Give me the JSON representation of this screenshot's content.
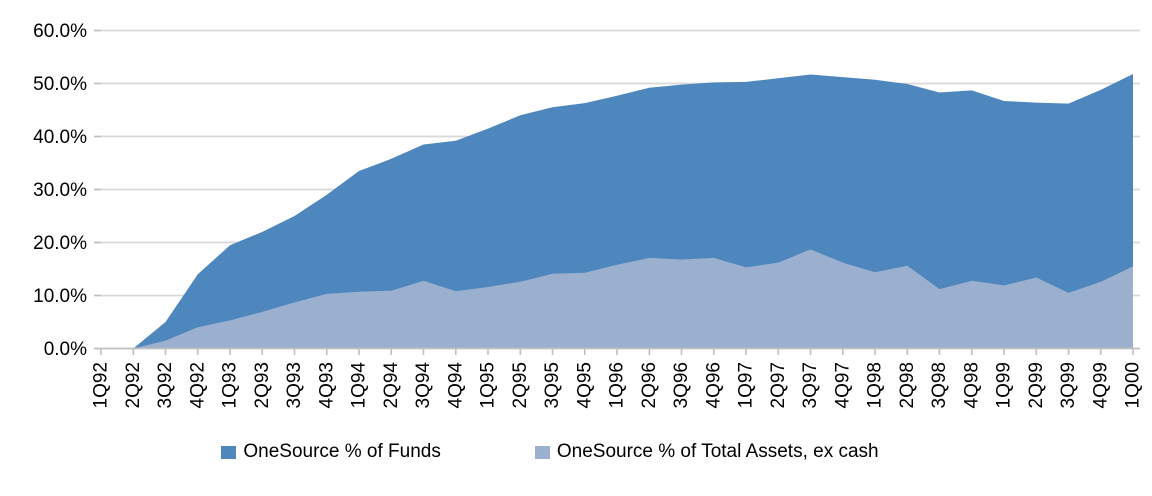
{
  "chart_data": {
    "type": "area",
    "title": "",
    "xlabel": "",
    "ylabel": "",
    "grid": true,
    "legend_position": "bottom",
    "overlapping_series": true,
    "categories": [
      "1Q92",
      "2Q92",
      "3Q92",
      "4Q92",
      "1Q93",
      "2Q93",
      "3Q93",
      "4Q93",
      "1Q94",
      "2Q94",
      "3Q94",
      "4Q94",
      "1Q95",
      "2Q95",
      "3Q95",
      "4Q95",
      "1Q96",
      "2Q96",
      "3Q96",
      "4Q96",
      "1Q97",
      "2Q97",
      "3Q97",
      "4Q97",
      "1Q98",
      "2Q98",
      "3Q98",
      "4Q98",
      "1Q99",
      "2Q99",
      "3Q99",
      "4Q99",
      "1Q00"
    ],
    "series": [
      {
        "name": "OneSource % of Funds",
        "color": "#4E86BE",
        "values": [
          0,
          0,
          5.0,
          14.0,
          19.5,
          22.0,
          25.0,
          29.0,
          33.5,
          35.8,
          38.5,
          39.2,
          41.5,
          44.0,
          45.5,
          46.3,
          47.7,
          49.2,
          49.8,
          50.2,
          50.3,
          51.0,
          51.7,
          51.2,
          50.7,
          49.9,
          48.3,
          48.7,
          46.7,
          46.4,
          46.2,
          48.8,
          51.8
        ]
      },
      {
        "name": "OneSource % of Total Assets, ex cash",
        "color": "#9BB0CE",
        "values": [
          0,
          0,
          1.5,
          4.0,
          5.3,
          6.9,
          8.7,
          10.3,
          10.7,
          10.9,
          12.8,
          10.8,
          11.6,
          12.6,
          14.1,
          14.3,
          15.8,
          17.1,
          16.8,
          17.1,
          15.3,
          16.2,
          18.7,
          16.2,
          14.4,
          15.6,
          11.2,
          12.8,
          11.9,
          13.4,
          10.5,
          12.6,
          15.5
        ]
      }
    ],
    "y_axis": {
      "min": 0,
      "max": 60,
      "step": 10,
      "tick_labels": [
        "0.0%",
        "10.0%",
        "20.0%",
        "30.0%",
        "40.0%",
        "50.0%",
        "60.0%"
      ]
    },
    "colors": {
      "grid": "#D9D9D9",
      "axis": "#BFBFBF",
      "background": "#FFFFFF",
      "text": "#000000"
    }
  }
}
